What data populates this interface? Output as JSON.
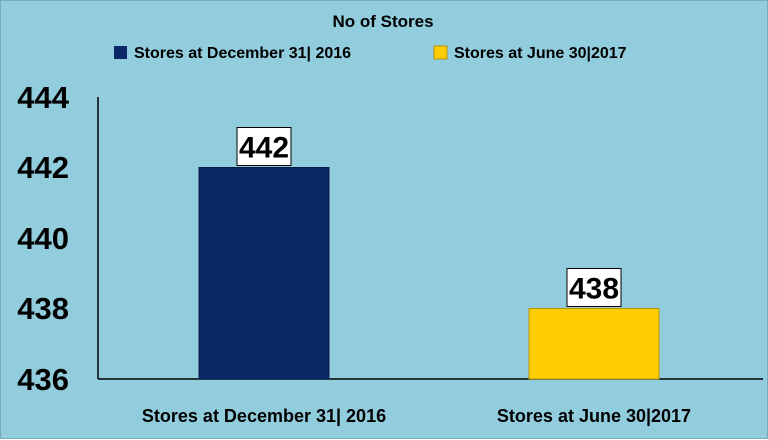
{
  "chart_data": {
    "type": "bar",
    "title": "No of Stores",
    "categories": [
      "Stores at December 31| 2016",
      "Stores at June 30|2017"
    ],
    "series": [
      {
        "name": "Stores at December 31| 2016",
        "values": [
          442,
          null
        ],
        "color": "#0B2766"
      },
      {
        "name": "Stores at June 30|2017",
        "values": [
          null,
          438
        ],
        "color": "#FFCC00"
      }
    ],
    "values": [
      442,
      438
    ],
    "data_labels": [
      "442",
      "438"
    ],
    "yticks": [
      "444",
      "442",
      "440",
      "438",
      "436"
    ],
    "ylim": [
      436,
      444
    ],
    "grid": false,
    "legend_position": "top",
    "background_color": "#92CDDD"
  }
}
